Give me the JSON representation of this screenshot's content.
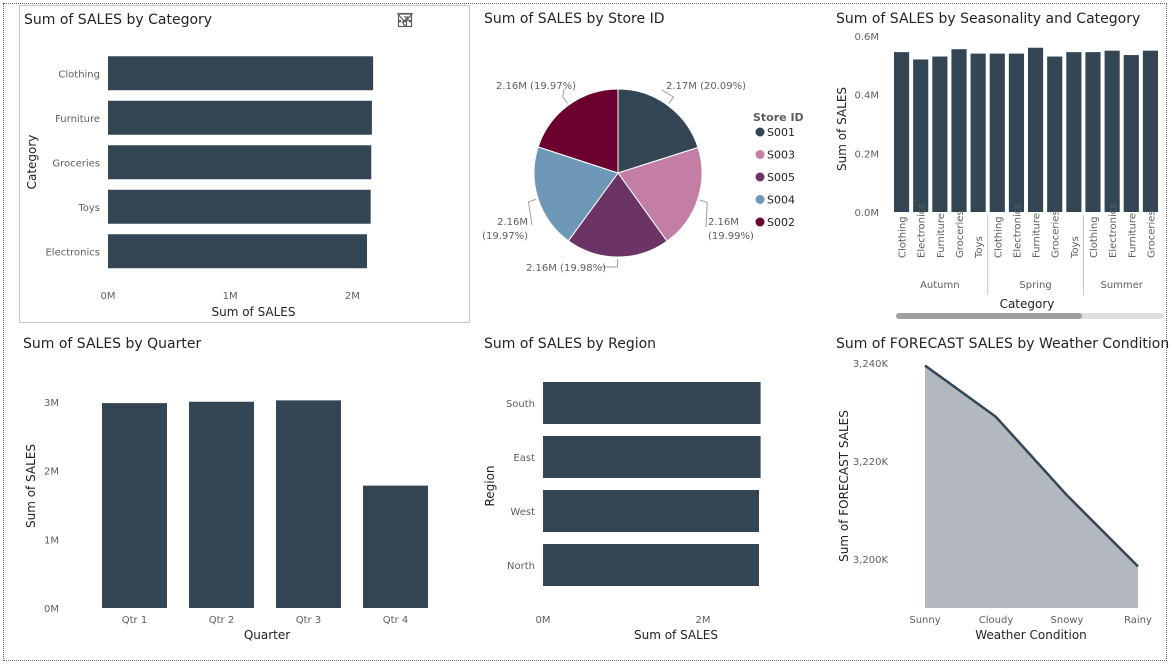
{
  "colors": {
    "bar": "#344654",
    "area_fill": "#b3b8be",
    "s001": "#344654",
    "s003": "#c47ea6",
    "s005": "#6b3464",
    "s004": "#6f98b8",
    "s002": "#6b0030"
  },
  "icons": [
    "filter-icon",
    "focus-mode-icon",
    "more-options-icon"
  ],
  "charts": {
    "category": {
      "title": "Sum of SALES by Category",
      "xlabel": "Sum of SALES",
      "ylabel": "Category",
      "xticks": [
        "0M",
        "1M",
        "2M"
      ]
    },
    "store": {
      "title": "Sum of SALES by Store ID",
      "legend_title": "Store ID"
    },
    "season": {
      "title": "Sum of SALES by Seasonality and Category",
      "xlabel": "Category",
      "ylabel": "Sum of SALES",
      "yticks": [
        "0.0M",
        "0.2M",
        "0.4M",
        "0.6M"
      ]
    },
    "quarter": {
      "title": "Sum of SALES by Quarter",
      "xlabel": "Quarter",
      "ylabel": "Sum of SALES",
      "yticks": [
        "0M",
        "1M",
        "2M",
        "3M"
      ]
    },
    "region": {
      "title": "Sum of SALES by Region",
      "xlabel": "Sum of SALES",
      "ylabel": "Region",
      "xticks": [
        "0M",
        "2M"
      ]
    },
    "weather": {
      "title": "Sum of FORECAST SALES by Weather Condition",
      "xlabel": "Weather Condition",
      "ylabel": "Sum of FORECAST SALES",
      "yticks": [
        "3,200K",
        "3,220K",
        "3,240K"
      ]
    }
  },
  "chart_data": [
    {
      "type": "bar",
      "orientation": "horizontal",
      "title": "Sum of SALES by Category",
      "categories": [
        "Clothing",
        "Furniture",
        "Groceries",
        "Toys",
        "Electronics"
      ],
      "values": [
        2.17,
        2.16,
        2.155,
        2.15,
        2.12
      ],
      "unit": "M",
      "xlim": [
        0,
        2.3
      ],
      "xlabel": "Sum of SALES",
      "ylabel": "Category",
      "legend": false,
      "grid": false
    },
    {
      "type": "pie",
      "title": "Sum of SALES by Store ID",
      "legend_title": "Store ID",
      "legend_position": "right",
      "slices": [
        {
          "name": "S001",
          "value": 2.17,
          "label": "2.17M (20.09%)"
        },
        {
          "name": "S003",
          "value": 2.16,
          "label": "2.16M (19.99%)"
        },
        {
          "name": "S005",
          "value": 2.16,
          "label": "2.16M (19.98%)"
        },
        {
          "name": "S004",
          "value": 2.16,
          "label": "2.16M (19.97%)"
        },
        {
          "name": "S002",
          "value": 2.16,
          "label": "2.16M (19.97%)"
        }
      ],
      "percents": [
        20.09,
        19.99,
        19.98,
        19.97,
        19.97
      ]
    },
    {
      "type": "bar",
      "title": "Sum of SALES by Seasonality and Category",
      "groups": [
        {
          "name": "Autumn",
          "categories": [
            "Clothing",
            "Electronics",
            "Furniture",
            "Groceries",
            "Toys"
          ],
          "values": [
            0.545,
            0.52,
            0.53,
            0.555,
            0.54
          ]
        },
        {
          "name": "Spring",
          "categories": [
            "Clothing",
            "Electronics",
            "Furniture",
            "Groceries",
            "Toys"
          ],
          "values": [
            0.54,
            0.54,
            0.56,
            0.53,
            0.545
          ]
        },
        {
          "name": "Summer",
          "categories": [
            "Clothing",
            "Electronics",
            "Furniture",
            "Groceries"
          ],
          "values": [
            0.545,
            0.55,
            0.535,
            0.55
          ]
        }
      ],
      "unit": "M",
      "ylim": [
        0,
        0.6
      ],
      "xlabel": "Category",
      "ylabel": "Sum of SALES",
      "legend": false,
      "grid": false
    },
    {
      "type": "bar",
      "title": "Sum of SALES by Quarter",
      "categories": [
        "Qtr 1",
        "Qtr 2",
        "Qtr 3",
        "Qtr 4"
      ],
      "values": [
        2.98,
        3.0,
        3.02,
        1.78
      ],
      "unit": "M",
      "ylim": [
        0,
        3.2
      ],
      "xlabel": "Quarter",
      "ylabel": "Sum of SALES",
      "legend": false,
      "grid": false
    },
    {
      "type": "bar",
      "orientation": "horizontal",
      "title": "Sum of SALES by Region",
      "categories": [
        "South",
        "East",
        "West",
        "North"
      ],
      "values": [
        2.72,
        2.72,
        2.7,
        2.7
      ],
      "unit": "M",
      "xlim": [
        0,
        3.0
      ],
      "xlabel": "Sum of SALES",
      "ylabel": "Region",
      "legend": false,
      "grid": false
    },
    {
      "type": "area",
      "title": "Sum of FORECAST SALES by Weather Condition",
      "categories": [
        "Sunny",
        "Cloudy",
        "Snowy",
        "Rainy"
      ],
      "values": [
        3239.5,
        3229,
        3213,
        3198.5
      ],
      "unit": "K",
      "ylim": [
        3190,
        3240
      ],
      "xlabel": "Weather Condition",
      "ylabel": "Sum of FORECAST SALES",
      "legend": false,
      "grid": false
    }
  ]
}
